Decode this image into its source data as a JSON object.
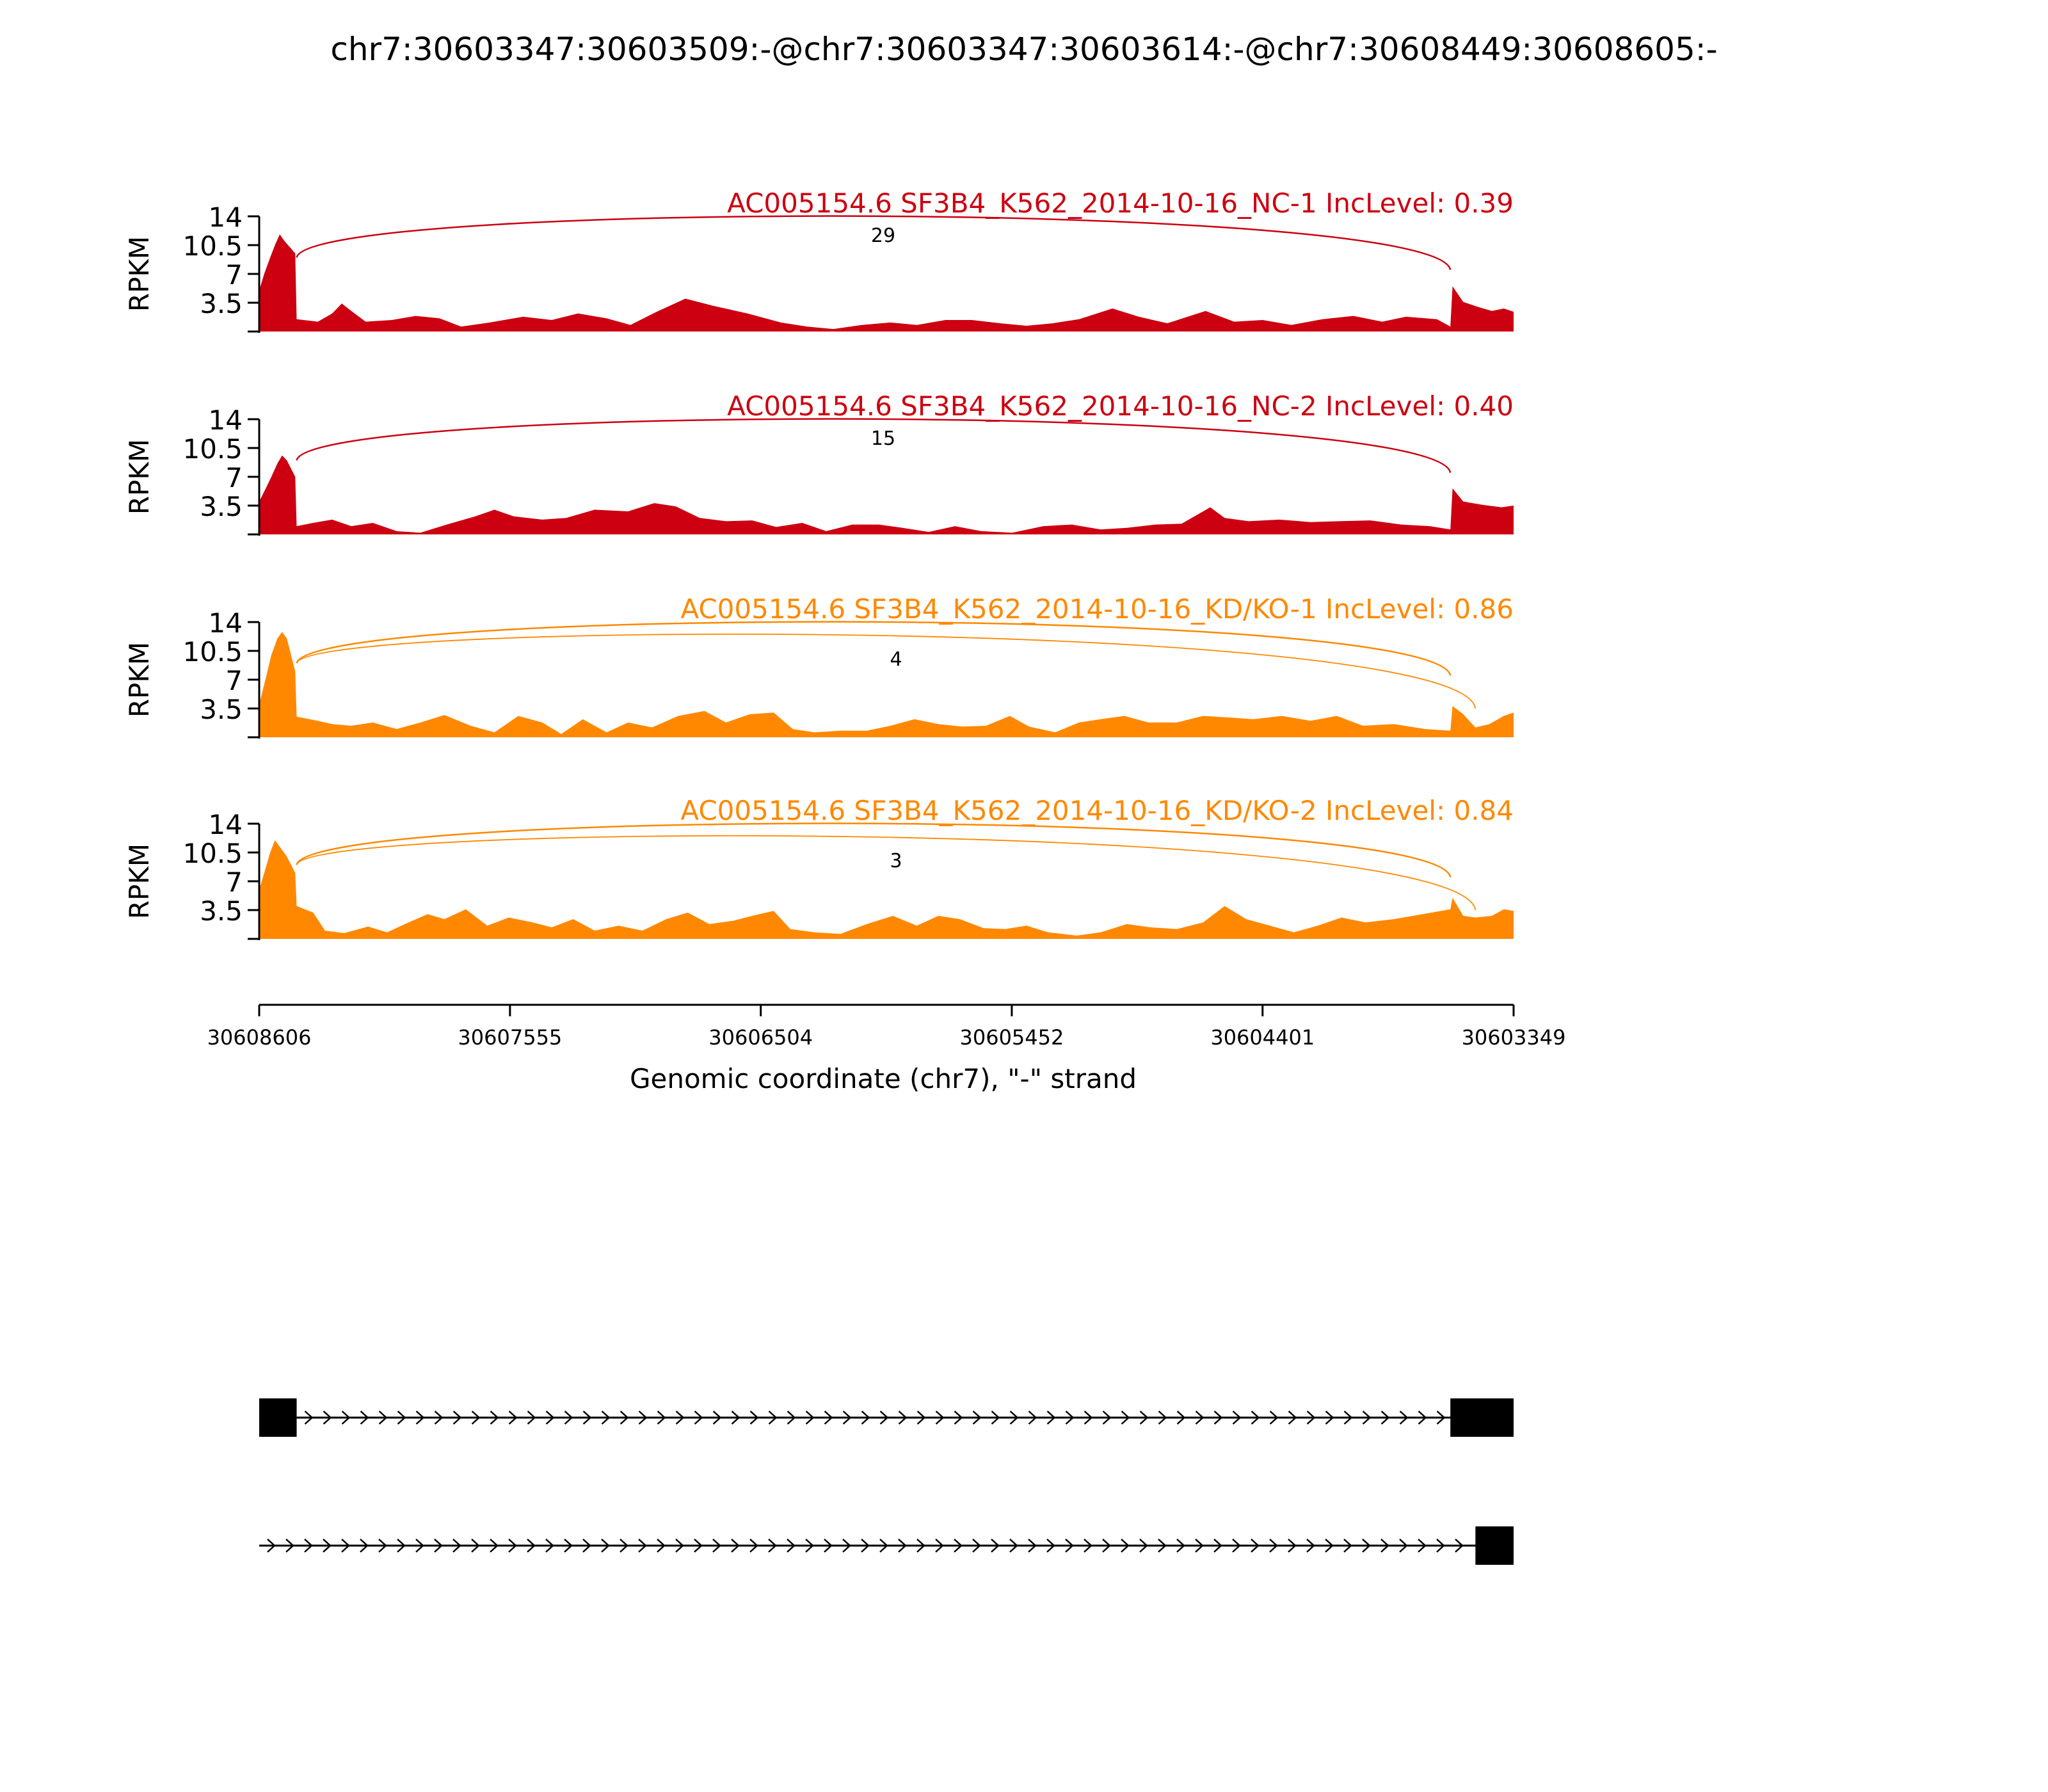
{
  "figure": {
    "title": "chr7:30603347:30603509:-@chr7:30603347:30603614:-@chr7:30608449:30608605:-"
  },
  "chart_data": {
    "type": "area",
    "title": "chr7:30603347:30603509:-@chr7:30603347:30603614:-@chr7:30608449:30608605:-",
    "ylabel": "RPKM",
    "ylim": [
      0,
      14
    ],
    "yticks": [
      "14",
      "10.5",
      "7",
      "3.5"
    ],
    "xlabel": "Genomic coordinate (chr7), \"-\" strand",
    "xlim": [
      30608606,
      30603349
    ],
    "xticks": [
      "30608606",
      "30607555",
      "30606504",
      "30605452",
      "30604401",
      "30603349"
    ],
    "grid": false,
    "colors": {
      "nc": "#cc0011",
      "kd": "#ff8800",
      "gene": "#000000"
    },
    "tracks": [
      {
        "label": "AC005154.6 SF3B4_K562_2014-10-16_NC-1 IncLevel: 0.39",
        "group": "nc",
        "junctions": [
          {
            "count": "29",
            "start": 30608449,
            "end": 30603614
          }
        ],
        "profile": [
          [
            30608606,
            5.0
          ],
          [
            30608585,
            7.0
          ],
          [
            30608560,
            9.0
          ],
          [
            30608540,
            10.5
          ],
          [
            30608520,
            11.8
          ],
          [
            30608500,
            11.0
          ],
          [
            30608455,
            9.5
          ],
          [
            30608449,
            1.5
          ],
          [
            30608360,
            1.2
          ],
          [
            30608300,
            2.2
          ],
          [
            30608260,
            3.4
          ],
          [
            30608220,
            2.5
          ],
          [
            30608160,
            1.2
          ],
          [
            30608050,
            1.4
          ],
          [
            30607950,
            1.9
          ],
          [
            30607850,
            1.6
          ],
          [
            30607760,
            0.6
          ],
          [
            30607640,
            1.1
          ],
          [
            30607500,
            1.8
          ],
          [
            30607380,
            1.4
          ],
          [
            30607270,
            2.2
          ],
          [
            30607150,
            1.6
          ],
          [
            30607050,
            0.8
          ],
          [
            30606940,
            2.4
          ],
          [
            30606820,
            4.0
          ],
          [
            30606700,
            3.1
          ],
          [
            30606560,
            2.2
          ],
          [
            30606420,
            1.1
          ],
          [
            30606310,
            0.6
          ],
          [
            30606200,
            0.3
          ],
          [
            30606080,
            0.8
          ],
          [
            30605960,
            1.1
          ],
          [
            30605850,
            0.8
          ],
          [
            30605730,
            1.4
          ],
          [
            30605620,
            1.4
          ],
          [
            30605500,
            1.0
          ],
          [
            30605390,
            0.7
          ],
          [
            30605280,
            1.0
          ],
          [
            30605170,
            1.5
          ],
          [
            30605030,
            2.8
          ],
          [
            30604920,
            1.8
          ],
          [
            30604800,
            1.0
          ],
          [
            30604640,
            2.5
          ],
          [
            30604520,
            1.2
          ],
          [
            30604400,
            1.4
          ],
          [
            30604280,
            0.8
          ],
          [
            30604150,
            1.5
          ],
          [
            30604020,
            1.9
          ],
          [
            30603900,
            1.2
          ],
          [
            30603800,
            1.8
          ],
          [
            30603670,
            1.5
          ],
          [
            30603614,
            0.6
          ],
          [
            30603605,
            5.5
          ],
          [
            30603560,
            3.6
          ],
          [
            30603500,
            3.0
          ],
          [
            30603440,
            2.5
          ],
          [
            30603390,
            2.8
          ],
          [
            30603349,
            2.4
          ]
        ]
      },
      {
        "label": "AC005154.6 SF3B4_K562_2014-10-16_NC-2 IncLevel: 0.40",
        "group": "nc",
        "junctions": [
          {
            "count": "15",
            "start": 30608449,
            "end": 30603614
          }
        ],
        "profile": [
          [
            30608606,
            4.0
          ],
          [
            30608580,
            5.5
          ],
          [
            30608555,
            7.0
          ],
          [
            30608530,
            8.6
          ],
          [
            30608510,
            9.6
          ],
          [
            30608490,
            9.0
          ],
          [
            30608455,
            7.0
          ],
          [
            30608449,
            1.0
          ],
          [
            30608380,
            1.4
          ],
          [
            30608300,
            1.8
          ],
          [
            30608220,
            1.0
          ],
          [
            30608130,
            1.4
          ],
          [
            30608030,
            0.4
          ],
          [
            30607930,
            0.2
          ],
          [
            30607820,
            1.2
          ],
          [
            30607700,
            2.2
          ],
          [
            30607620,
            3.0
          ],
          [
            30607540,
            2.2
          ],
          [
            30607420,
            1.8
          ],
          [
            30607320,
            2.0
          ],
          [
            30607200,
            3.0
          ],
          [
            30607060,
            2.8
          ],
          [
            30606950,
            3.8
          ],
          [
            30606860,
            3.4
          ],
          [
            30606760,
            2.0
          ],
          [
            30606650,
            1.6
          ],
          [
            30606540,
            1.7
          ],
          [
            30606440,
            0.9
          ],
          [
            30606330,
            1.4
          ],
          [
            30606230,
            0.4
          ],
          [
            30606120,
            1.2
          ],
          [
            30606010,
            1.2
          ],
          [
            30605910,
            0.8
          ],
          [
            30605800,
            0.3
          ],
          [
            30605690,
            1.0
          ],
          [
            30605580,
            0.4
          ],
          [
            30605450,
            0.2
          ],
          [
            30605320,
            1.0
          ],
          [
            30605200,
            1.2
          ],
          [
            30605080,
            0.6
          ],
          [
            30604970,
            0.8
          ],
          [
            30604850,
            1.2
          ],
          [
            30604740,
            1.3
          ],
          [
            30604620,
            3.3
          ],
          [
            30604560,
            2.0
          ],
          [
            30604460,
            1.6
          ],
          [
            30604330,
            1.8
          ],
          [
            30604200,
            1.5
          ],
          [
            30604080,
            1.6
          ],
          [
            30603950,
            1.7
          ],
          [
            30603820,
            1.2
          ],
          [
            30603700,
            1.0
          ],
          [
            30603614,
            0.6
          ],
          [
            30603605,
            5.6
          ],
          [
            30603560,
            4.0
          ],
          [
            30603480,
            3.6
          ],
          [
            30603400,
            3.3
          ],
          [
            30603349,
            3.5
          ]
        ]
      },
      {
        "label": "AC005154.6 SF3B4_K562_2014-10-16_KD/KO-1 IncLevel: 0.86",
        "group": "kd",
        "junctions": [
          {
            "count": "",
            "start": 30608449,
            "end": 30603614
          },
          {
            "count": "4",
            "start": 30608449,
            "end": 30603509
          }
        ],
        "profile": [
          [
            30608606,
            4.0
          ],
          [
            30608580,
            7.0
          ],
          [
            30608555,
            10.0
          ],
          [
            30608530,
            12.0
          ],
          [
            30608510,
            12.8
          ],
          [
            30608490,
            12.0
          ],
          [
            30608455,
            8.0
          ],
          [
            30608449,
            2.5
          ],
          [
            30608360,
            2.0
          ],
          [
            30608300,
            1.6
          ],
          [
            30608220,
            1.4
          ],
          [
            30608130,
            1.8
          ],
          [
            30608030,
            1.0
          ],
          [
            30607930,
            1.8
          ],
          [
            30607830,
            2.7
          ],
          [
            30607720,
            1.4
          ],
          [
            30607620,
            0.6
          ],
          [
            30607520,
            2.6
          ],
          [
            30607420,
            1.8
          ],
          [
            30607340,
            0.4
          ],
          [
            30607250,
            2.2
          ],
          [
            30607150,
            0.6
          ],
          [
            30607060,
            1.8
          ],
          [
            30606960,
            1.2
          ],
          [
            30606850,
            2.6
          ],
          [
            30606740,
            3.2
          ],
          [
            30606650,
            1.8
          ],
          [
            30606550,
            2.8
          ],
          [
            30606450,
            3.0
          ],
          [
            30606370,
            1.0
          ],
          [
            30606280,
            0.6
          ],
          [
            30606170,
            0.8
          ],
          [
            30606060,
            0.8
          ],
          [
            30605960,
            1.4
          ],
          [
            30605860,
            2.2
          ],
          [
            30605760,
            1.6
          ],
          [
            30605660,
            1.3
          ],
          [
            30605560,
            1.4
          ],
          [
            30605460,
            2.6
          ],
          [
            30605380,
            1.3
          ],
          [
            30605270,
            0.6
          ],
          [
            30605170,
            1.8
          ],
          [
            30605080,
            2.2
          ],
          [
            30604980,
            2.6
          ],
          [
            30604880,
            1.8
          ],
          [
            30604760,
            1.8
          ],
          [
            30604650,
            2.6
          ],
          [
            30604540,
            2.4
          ],
          [
            30604440,
            2.2
          ],
          [
            30604320,
            2.6
          ],
          [
            30604200,
            2.0
          ],
          [
            30604090,
            2.6
          ],
          [
            30603980,
            1.4
          ],
          [
            30603850,
            1.6
          ],
          [
            30603720,
            1.0
          ],
          [
            30603614,
            0.8
          ],
          [
            30603605,
            3.8
          ],
          [
            30603560,
            2.8
          ],
          [
            30603509,
            1.2
          ],
          [
            30603450,
            1.6
          ],
          [
            30603390,
            2.6
          ],
          [
            30603349,
            3.0
          ]
        ]
      },
      {
        "label": "AC005154.6 SF3B4_K562_2014-10-16_KD/KO-2 IncLevel: 0.84",
        "group": "kd",
        "junctions": [
          {
            "count": "",
            "start": 30608449,
            "end": 30603614
          },
          {
            "count": "3",
            "start": 30608449,
            "end": 30603509
          }
        ],
        "profile": [
          [
            30608606,
            6.0
          ],
          [
            30608585,
            8.0
          ],
          [
            30608560,
            10.5
          ],
          [
            30608540,
            12.0
          ],
          [
            30608520,
            11.2
          ],
          [
            30608490,
            10.0
          ],
          [
            30608455,
            8.0
          ],
          [
            30608449,
            4.0
          ],
          [
            30608380,
            3.2
          ],
          [
            30608330,
            1.0
          ],
          [
            30608250,
            0.7
          ],
          [
            30608150,
            1.5
          ],
          [
            30608070,
            0.8
          ],
          [
            30607980,
            2.0
          ],
          [
            30607900,
            3.0
          ],
          [
            30607830,
            2.4
          ],
          [
            30607740,
            3.6
          ],
          [
            30607650,
            1.6
          ],
          [
            30607560,
            2.6
          ],
          [
            30607460,
            2.0
          ],
          [
            30607380,
            1.4
          ],
          [
            30607290,
            2.4
          ],
          [
            30607200,
            1.0
          ],
          [
            30607100,
            1.6
          ],
          [
            30607000,
            1.0
          ],
          [
            30606900,
            2.4
          ],
          [
            30606810,
            3.2
          ],
          [
            30606720,
            1.8
          ],
          [
            30606620,
            2.2
          ],
          [
            30606540,
            2.8
          ],
          [
            30606450,
            3.4
          ],
          [
            30606380,
            1.2
          ],
          [
            30606280,
            0.8
          ],
          [
            30606170,
            0.6
          ],
          [
            30606060,
            1.8
          ],
          [
            30605950,
            2.8
          ],
          [
            30605850,
            1.6
          ],
          [
            30605760,
            2.8
          ],
          [
            30605670,
            2.4
          ],
          [
            30605570,
            1.3
          ],
          [
            30605480,
            1.2
          ],
          [
            30605390,
            1.6
          ],
          [
            30605300,
            0.8
          ],
          [
            30605180,
            0.4
          ],
          [
            30605080,
            0.8
          ],
          [
            30604970,
            1.8
          ],
          [
            30604870,
            1.4
          ],
          [
            30604760,
            1.2
          ],
          [
            30604650,
            2.0
          ],
          [
            30604560,
            4.0
          ],
          [
            30604470,
            2.4
          ],
          [
            30604370,
            1.6
          ],
          [
            30604270,
            0.8
          ],
          [
            30604170,
            1.6
          ],
          [
            30604070,
            2.6
          ],
          [
            30603970,
            2.0
          ],
          [
            30603850,
            2.4
          ],
          [
            30603730,
            3.0
          ],
          [
            30603614,
            3.6
          ],
          [
            30603605,
            5.0
          ],
          [
            30603560,
            2.8
          ],
          [
            30603509,
            2.6
          ],
          [
            30603440,
            2.8
          ],
          [
            30603390,
            3.6
          ],
          [
            30603349,
            3.4
          ]
        ]
      }
    ],
    "gene_models": [
      {
        "exons": [
          [
            30608606,
            30608449
          ],
          [
            30603614,
            30603349
          ]
        ]
      },
      {
        "exons": [
          [
            30603509,
            30603349
          ]
        ]
      }
    ]
  }
}
